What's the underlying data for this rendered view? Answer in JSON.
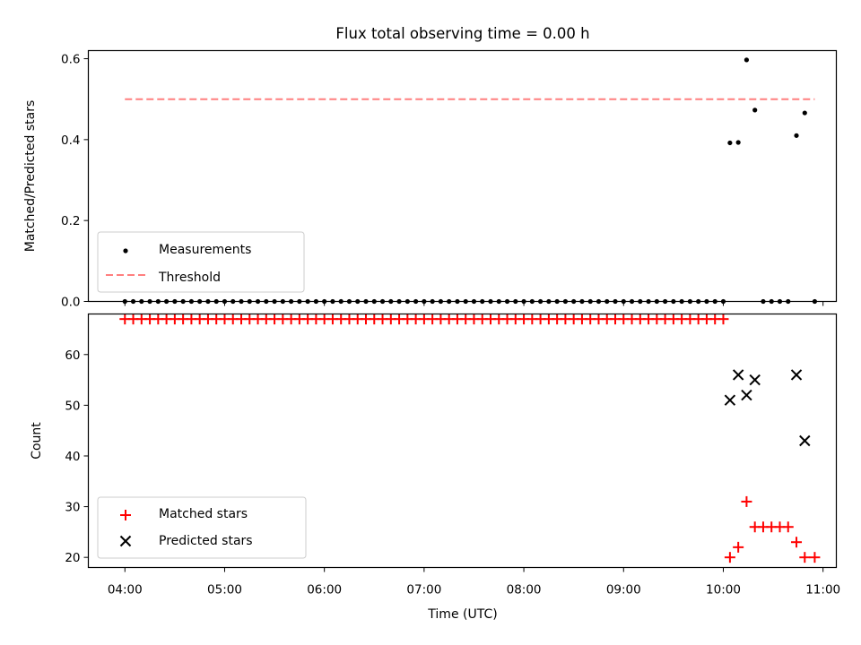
{
  "chart_data": [
    {
      "type": "scatter",
      "title": "Flux total observing time = 0.00 h",
      "xlabel": "",
      "ylabel": "Matched/Predicted stars",
      "xlim": [
        "03:38",
        "11:08"
      ],
      "ylim": [
        0,
        0.62
      ],
      "yticks": [
        0.0,
        0.2,
        0.4,
        0.6
      ],
      "ytick_labels": [
        "0.0",
        "0.2",
        "0.4",
        "0.6"
      ],
      "legend_location": "lower-left",
      "series": [
        {
          "name": "Measurements",
          "marker": "dot",
          "color": "#000000",
          "points": [
            [
              "04:00",
              0
            ],
            [
              "04:05",
              0
            ],
            [
              "04:10",
              0
            ],
            [
              "04:15",
              0
            ],
            [
              "04:20",
              0
            ],
            [
              "04:25",
              0
            ],
            [
              "04:30",
              0
            ],
            [
              "04:35",
              0
            ],
            [
              "04:40",
              0
            ],
            [
              "04:45",
              0
            ],
            [
              "04:50",
              0
            ],
            [
              "04:55",
              0
            ],
            [
              "05:00",
              0
            ],
            [
              "05:05",
              0
            ],
            [
              "05:10",
              0
            ],
            [
              "05:15",
              0
            ],
            [
              "05:20",
              0
            ],
            [
              "05:25",
              0
            ],
            [
              "05:30",
              0
            ],
            [
              "05:35",
              0
            ],
            [
              "05:40",
              0
            ],
            [
              "05:45",
              0
            ],
            [
              "05:50",
              0
            ],
            [
              "05:55",
              0
            ],
            [
              "06:00",
              0
            ],
            [
              "06:05",
              0
            ],
            [
              "06:10",
              0
            ],
            [
              "06:15",
              0
            ],
            [
              "06:20",
              0
            ],
            [
              "06:25",
              0
            ],
            [
              "06:30",
              0
            ],
            [
              "06:35",
              0
            ],
            [
              "06:40",
              0
            ],
            [
              "06:45",
              0
            ],
            [
              "06:50",
              0
            ],
            [
              "06:55",
              0
            ],
            [
              "07:00",
              0
            ],
            [
              "07:05",
              0
            ],
            [
              "07:10",
              0
            ],
            [
              "07:15",
              0
            ],
            [
              "07:20",
              0
            ],
            [
              "07:25",
              0
            ],
            [
              "07:30",
              0
            ],
            [
              "07:35",
              0
            ],
            [
              "07:40",
              0
            ],
            [
              "07:45",
              0
            ],
            [
              "07:50",
              0
            ],
            [
              "07:55",
              0
            ],
            [
              "08:00",
              0
            ],
            [
              "08:05",
              0
            ],
            [
              "08:10",
              0
            ],
            [
              "08:15",
              0
            ],
            [
              "08:20",
              0
            ],
            [
              "08:25",
              0
            ],
            [
              "08:30",
              0
            ],
            [
              "08:35",
              0
            ],
            [
              "08:40",
              0
            ],
            [
              "08:45",
              0
            ],
            [
              "08:50",
              0
            ],
            [
              "08:55",
              0
            ],
            [
              "09:00",
              0
            ],
            [
              "09:05",
              0
            ],
            [
              "09:10",
              0
            ],
            [
              "09:15",
              0
            ],
            [
              "09:20",
              0
            ],
            [
              "09:25",
              0
            ],
            [
              "09:30",
              0
            ],
            [
              "09:35",
              0
            ],
            [
              "09:40",
              0
            ],
            [
              "09:45",
              0
            ],
            [
              "09:50",
              0
            ],
            [
              "09:55",
              0
            ],
            [
              "10:00",
              0
            ],
            [
              "10:04",
              0.392
            ],
            [
              "10:09",
              0.393
            ],
            [
              "10:14",
              0.597
            ],
            [
              "10:19",
              0.473
            ],
            [
              "10:24",
              0
            ],
            [
              "10:29",
              0
            ],
            [
              "10:34",
              0
            ],
            [
              "10:39",
              0
            ],
            [
              "10:44",
              0.41
            ],
            [
              "10:49",
              0.466
            ],
            [
              "10:55",
              0
            ]
          ]
        },
        {
          "name": "Threshold",
          "line_style": "dashed",
          "color": "#ff7f7f",
          "points": [
            [
              "04:00",
              0.5
            ],
            [
              "10:55",
              0.5
            ]
          ]
        }
      ]
    },
    {
      "type": "scatter",
      "title": "",
      "xlabel": "Time (UTC)",
      "ylabel": "Count",
      "xlim": [
        "03:38",
        "11:08"
      ],
      "ylim": [
        18,
        68
      ],
      "yticks": [
        20,
        30,
        40,
        50,
        60
      ],
      "ytick_labels": [
        "20",
        "30",
        "40",
        "50",
        "60"
      ],
      "xticks": [
        "04:00",
        "05:00",
        "06:00",
        "07:00",
        "08:00",
        "09:00",
        "10:00",
        "11:00"
      ],
      "xtick_labels": [
        "04:00",
        "05:00",
        "06:00",
        "07:00",
        "08:00",
        "09:00",
        "10:00",
        "11:00"
      ],
      "legend_location": "lower-left",
      "series": [
        {
          "name": "Matched stars",
          "marker": "plus",
          "color": "#ff0000",
          "points": [
            [
              "04:00",
              67
            ],
            [
              "04:05",
              67
            ],
            [
              "04:10",
              67
            ],
            [
              "04:15",
              67
            ],
            [
              "04:20",
              67
            ],
            [
              "04:25",
              67
            ],
            [
              "04:30",
              67
            ],
            [
              "04:35",
              67
            ],
            [
              "04:40",
              67
            ],
            [
              "04:45",
              67
            ],
            [
              "04:50",
              67
            ],
            [
              "04:55",
              67
            ],
            [
              "05:00",
              67
            ],
            [
              "05:05",
              67
            ],
            [
              "05:10",
              67
            ],
            [
              "05:15",
              67
            ],
            [
              "05:20",
              67
            ],
            [
              "05:25",
              67
            ],
            [
              "05:30",
              67
            ],
            [
              "05:35",
              67
            ],
            [
              "05:40",
              67
            ],
            [
              "05:45",
              67
            ],
            [
              "05:50",
              67
            ],
            [
              "05:55",
              67
            ],
            [
              "06:00",
              67
            ],
            [
              "06:05",
              67
            ],
            [
              "06:10",
              67
            ],
            [
              "06:15",
              67
            ],
            [
              "06:20",
              67
            ],
            [
              "06:25",
              67
            ],
            [
              "06:30",
              67
            ],
            [
              "06:35",
              67
            ],
            [
              "06:40",
              67
            ],
            [
              "06:45",
              67
            ],
            [
              "06:50",
              67
            ],
            [
              "06:55",
              67
            ],
            [
              "07:00",
              67
            ],
            [
              "07:05",
              67
            ],
            [
              "07:10",
              67
            ],
            [
              "07:15",
              67
            ],
            [
              "07:20",
              67
            ],
            [
              "07:25",
              67
            ],
            [
              "07:30",
              67
            ],
            [
              "07:35",
              67
            ],
            [
              "07:40",
              67
            ],
            [
              "07:45",
              67
            ],
            [
              "07:50",
              67
            ],
            [
              "07:55",
              67
            ],
            [
              "08:00",
              67
            ],
            [
              "08:05",
              67
            ],
            [
              "08:10",
              67
            ],
            [
              "08:15",
              67
            ],
            [
              "08:20",
              67
            ],
            [
              "08:25",
              67
            ],
            [
              "08:30",
              67
            ],
            [
              "08:35",
              67
            ],
            [
              "08:40",
              67
            ],
            [
              "08:45",
              67
            ],
            [
              "08:50",
              67
            ],
            [
              "08:55",
              67
            ],
            [
              "09:00",
              67
            ],
            [
              "09:05",
              67
            ],
            [
              "09:10",
              67
            ],
            [
              "09:15",
              67
            ],
            [
              "09:20",
              67
            ],
            [
              "09:25",
              67
            ],
            [
              "09:30",
              67
            ],
            [
              "09:35",
              67
            ],
            [
              "09:40",
              67
            ],
            [
              "09:45",
              67
            ],
            [
              "09:50",
              67
            ],
            [
              "09:55",
              67
            ],
            [
              "10:00",
              67
            ],
            [
              "10:04",
              20
            ],
            [
              "10:09",
              22
            ],
            [
              "10:14",
              31
            ],
            [
              "10:19",
              26
            ],
            [
              "10:24",
              26
            ],
            [
              "10:29",
              26
            ],
            [
              "10:34",
              26
            ],
            [
              "10:39",
              26
            ],
            [
              "10:44",
              23
            ],
            [
              "10:49",
              20
            ],
            [
              "10:55",
              20
            ]
          ]
        },
        {
          "name": "Predicted stars",
          "marker": "x",
          "color": "#000000",
          "points": [
            [
              "10:04",
              51
            ],
            [
              "10:09",
              56
            ],
            [
              "10:14",
              52
            ],
            [
              "10:19",
              55
            ],
            [
              "10:44",
              56
            ],
            [
              "10:49",
              43
            ]
          ]
        }
      ]
    }
  ]
}
